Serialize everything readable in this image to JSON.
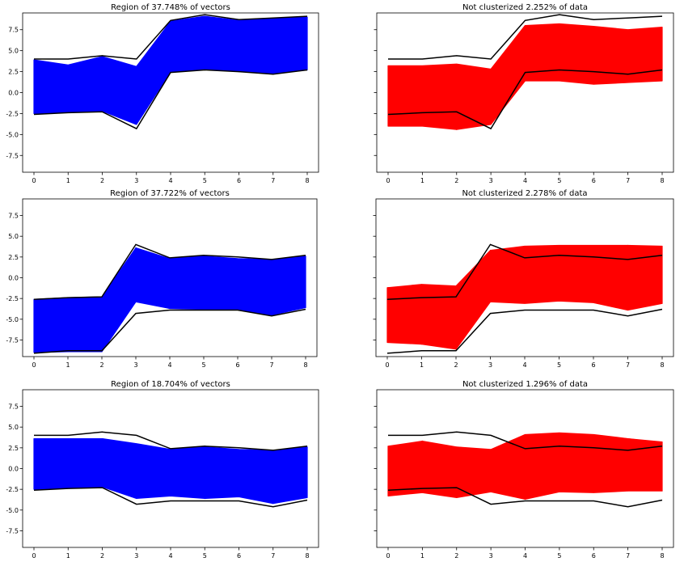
{
  "chart_data": [
    {
      "type": "line",
      "title": "Region of 37.748% of vectors",
      "color": "#0000ff",
      "x": [
        0,
        1,
        2,
        3,
        4,
        5,
        6,
        7,
        8
      ],
      "xticks": [
        "0",
        "1",
        "2",
        "3",
        "4",
        "5",
        "6",
        "7",
        "8"
      ],
      "ylim": [
        -9.5,
        9.5
      ],
      "yticks": [
        "7.5",
        "5.0",
        "2.5",
        "0.0",
        "-2.5",
        "-5.0",
        "-7.5"
      ],
      "ytick_values": [
        7.5,
        5,
        2.5,
        0,
        -2.5,
        -5,
        -7.5
      ],
      "fill_upper": [
        3.9,
        3.3,
        4.3,
        3.1,
        8.5,
        9.1,
        8.6,
        8.8,
        9.0
      ],
      "fill_lower": [
        -2.5,
        -2.3,
        -2.2,
        -3.8,
        2.5,
        2.8,
        2.5,
        2.3,
        2.7
      ],
      "bound_upper": [
        4.0,
        4.0,
        4.4,
        4.0,
        8.6,
        9.3,
        8.7,
        8.9,
        9.1
      ],
      "bound_lower": [
        -2.6,
        -2.4,
        -2.3,
        -4.3,
        2.4,
        2.7,
        2.5,
        2.2,
        2.7
      ],
      "center": [
        0.5,
        0.4,
        0.6,
        -0.2,
        5.5,
        5.9,
        5.5,
        5.4,
        5.8
      ],
      "show_yticklabels": true
    },
    {
      "type": "line",
      "title": "Not clusterized 2.252% of data",
      "color": "#ff0000",
      "x": [
        0,
        1,
        2,
        3,
        4,
        5,
        6,
        7,
        8
      ],
      "xticks": [
        "0",
        "1",
        "2",
        "3",
        "4",
        "5",
        "6",
        "7",
        "8"
      ],
      "ylim": [
        -9.5,
        9.5
      ],
      "yticks": [],
      "ytick_values": [
        7.5,
        5,
        2.5,
        0,
        -2.5,
        -5,
        -7.5
      ],
      "fill_upper": [
        3.2,
        3.2,
        3.4,
        2.8,
        8.0,
        8.2,
        7.9,
        7.5,
        7.8
      ],
      "fill_lower": [
        -4.0,
        -4.0,
        -4.4,
        -3.8,
        1.4,
        1.4,
        1.0,
        1.2,
        1.4
      ],
      "bound_upper": [
        4.0,
        4.0,
        4.4,
        4.0,
        8.6,
        9.3,
        8.7,
        8.9,
        9.1
      ],
      "bound_lower": [
        -2.6,
        -2.4,
        -2.3,
        -4.3,
        2.4,
        2.7,
        2.5,
        2.2,
        2.7
      ],
      "center": [
        -0.5,
        -0.4,
        -0.5,
        -0.6,
        4.6,
        4.9,
        4.6,
        4.4,
        4.6
      ],
      "show_yticklabels": false
    },
    {
      "type": "line",
      "title": "Region of 37.722% of vectors",
      "color": "#0000ff",
      "x": [
        0,
        1,
        2,
        3,
        4,
        5,
        6,
        7,
        8
      ],
      "xticks": [
        "0",
        "1",
        "2",
        "3",
        "4",
        "5",
        "6",
        "7",
        "8"
      ],
      "ylim": [
        -9.5,
        9.5
      ],
      "yticks": [
        "7.5",
        "5.0",
        "2.5",
        "0.0",
        "-2.5",
        "-5.0",
        "-7.5"
      ],
      "ytick_values": [
        7.5,
        5,
        2.5,
        0,
        -2.5,
        -5,
        -7.5
      ],
      "fill_upper": [
        -2.6,
        -2.4,
        -2.3,
        3.6,
        2.3,
        2.6,
        2.3,
        2.2,
        2.6
      ],
      "fill_lower": [
        -9.0,
        -8.9,
        -8.9,
        -2.9,
        -3.7,
        -3.8,
        -3.8,
        -4.5,
        -3.6
      ],
      "bound_upper": [
        -2.6,
        -2.4,
        -2.3,
        4.0,
        2.4,
        2.7,
        2.5,
        2.2,
        2.7
      ],
      "bound_lower": [
        -9.1,
        -8.8,
        -8.8,
        -4.3,
        -3.9,
        -3.9,
        -3.9,
        -4.6,
        -3.8
      ],
      "center": [
        -5.8,
        -5.6,
        -5.6,
        0.3,
        -0.7,
        -0.6,
        -0.7,
        -1.1,
        -0.5
      ],
      "show_yticklabels": true
    },
    {
      "type": "line",
      "title": "Not clusterized 2.278% of data",
      "color": "#ff0000",
      "x": [
        0,
        1,
        2,
        3,
        4,
        5,
        6,
        7,
        8
      ],
      "xticks": [
        "0",
        "1",
        "2",
        "3",
        "4",
        "5",
        "6",
        "7",
        "8"
      ],
      "ylim": [
        -9.5,
        9.5
      ],
      "yticks": [],
      "ytick_values": [
        7.5,
        5,
        2.5,
        0,
        -2.5,
        -5,
        -7.5
      ],
      "fill_upper": [
        -1.2,
        -0.8,
        -1.0,
        3.3,
        3.8,
        3.9,
        3.9,
        3.9,
        3.8
      ],
      "fill_lower": [
        -7.8,
        -8.0,
        -8.6,
        -2.9,
        -3.1,
        -2.8,
        -3.0,
        -3.9,
        -3.1
      ],
      "bound_upper": [
        -2.6,
        -2.4,
        -2.3,
        4.0,
        2.4,
        2.7,
        2.5,
        2.2,
        2.7
      ],
      "bound_lower": [
        -9.1,
        -8.8,
        -8.8,
        -4.3,
        -3.9,
        -3.9,
        -3.9,
        -4.6,
        -3.8
      ],
      "center": [
        -4.5,
        -4.4,
        -4.8,
        0.2,
        0.4,
        0.5,
        0.4,
        0.0,
        0.4
      ],
      "show_yticklabels": false
    },
    {
      "type": "line",
      "title": "Region of 18.704% of vectors",
      "color": "#0000ff",
      "x": [
        0,
        1,
        2,
        3,
        4,
        5,
        6,
        7,
        8
      ],
      "xticks": [
        "0",
        "1",
        "2",
        "3",
        "4",
        "5",
        "6",
        "7",
        "8"
      ],
      "ylim": [
        -9.5,
        9.5
      ],
      "yticks": [
        "7.5",
        "5.0",
        "2.5",
        "0.0",
        "-2.5",
        "-5.0",
        "-7.5"
      ],
      "ytick_values": [
        7.5,
        5,
        2.5,
        0,
        -2.5,
        -5,
        -7.5
      ],
      "fill_upper": [
        3.6,
        3.6,
        3.6,
        3.0,
        2.3,
        2.6,
        2.3,
        2.2,
        2.6
      ],
      "fill_lower": [
        -2.5,
        -2.3,
        -2.2,
        -3.6,
        -3.3,
        -3.6,
        -3.4,
        -4.2,
        -3.5
      ],
      "bound_upper": [
        4.0,
        4.0,
        4.4,
        4.0,
        2.4,
        2.7,
        2.5,
        2.2,
        2.7
      ],
      "bound_lower": [
        -2.6,
        -2.4,
        -2.3,
        -4.3,
        -3.9,
        -3.9,
        -3.9,
        -4.6,
        -3.8
      ],
      "center": [
        0.5,
        0.5,
        0.6,
        -0.3,
        -0.5,
        -0.5,
        -0.5,
        -1.0,
        -0.4
      ],
      "show_yticklabels": true
    },
    {
      "type": "line",
      "title": "Not clusterized 1.296% of data",
      "color": "#ff0000",
      "x": [
        0,
        1,
        2,
        3,
        4,
        5,
        6,
        7,
        8
      ],
      "xticks": [
        "0",
        "1",
        "2",
        "3",
        "4",
        "5",
        "6",
        "7",
        "8"
      ],
      "ylim": [
        -9.5,
        9.5
      ],
      "yticks": [],
      "ytick_values": [
        7.5,
        5,
        2.5,
        0,
        -2.5,
        -5,
        -7.5
      ],
      "fill_upper": [
        2.7,
        3.3,
        2.6,
        2.3,
        4.1,
        4.3,
        4.1,
        3.6,
        3.2
      ],
      "fill_lower": [
        -3.3,
        -2.9,
        -3.5,
        -2.8,
        -3.7,
        -2.8,
        -2.9,
        -2.7,
        -2.7
      ],
      "bound_upper": [
        4.0,
        4.0,
        4.4,
        4.0,
        2.4,
        2.7,
        2.5,
        2.2,
        2.7
      ],
      "bound_lower": [
        -2.6,
        -2.4,
        -2.3,
        -4.3,
        -3.9,
        -3.9,
        -3.9,
        -4.6,
        -3.8
      ],
      "center": [
        -0.3,
        0.2,
        -0.4,
        -0.2,
        0.2,
        0.7,
        0.6,
        0.4,
        0.2
      ],
      "show_yticklabels": false
    }
  ]
}
